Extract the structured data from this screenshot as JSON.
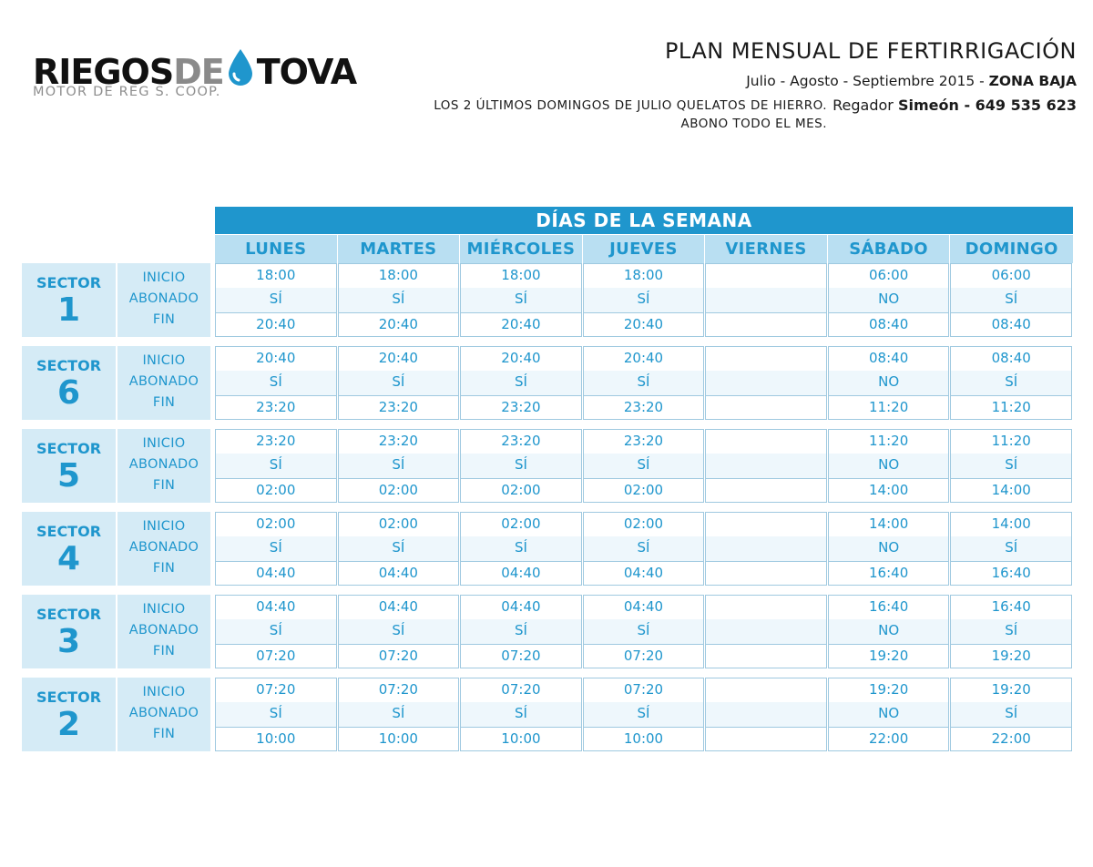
{
  "logo": {
    "part1": "RIEGOS",
    "part2": "DE",
    "part3": "TOVA",
    "subtitle": "MOTOR DE REG S. COOP.",
    "icon": "water-drop-icon",
    "brand_color": "#1f96cd"
  },
  "header": {
    "title": "PLAN MENSUAL DE FERTIRRIGACIÓN",
    "period": "Julio - Agosto - Septiembre 2015 - ",
    "zone": "ZONA BAJA",
    "note_line1": "LOS 2 ÚLTIMOS DOMINGOS DE JULIO QUELATOS DE HIERRO.",
    "note_line2": "ABONO TODO EL MES.",
    "regador_label": "Regador ",
    "regador_contact": "Simeón - 649 535 623"
  },
  "table": {
    "banner": "DÍAS DE LA SEMANA",
    "days": [
      "LUNES",
      "MARTES",
      "MIÉRCOLES",
      "JUEVES",
      "VIERNES",
      "SÁBADO",
      "DOMINGO"
    ],
    "row_labels": [
      "INICIO",
      "ABONADO",
      "FIN"
    ],
    "sector_word": "SECTOR",
    "sectors": [
      {
        "number": "1",
        "inicio": [
          "18:00",
          "18:00",
          "18:00",
          "18:00",
          "",
          "06:00",
          "06:00"
        ],
        "abonado": [
          "SÍ",
          "SÍ",
          "SÍ",
          "SÍ",
          "",
          "NO",
          "SÍ"
        ],
        "fin": [
          "20:40",
          "20:40",
          "20:40",
          "20:40",
          "",
          "08:40",
          "08:40"
        ]
      },
      {
        "number": "6",
        "inicio": [
          "20:40",
          "20:40",
          "20:40",
          "20:40",
          "",
          "08:40",
          "08:40"
        ],
        "abonado": [
          "SÍ",
          "SÍ",
          "SÍ",
          "SÍ",
          "",
          "NO",
          "SÍ"
        ],
        "fin": [
          "23:20",
          "23:20",
          "23:20",
          "23:20",
          "",
          "11:20",
          "11:20"
        ]
      },
      {
        "number": "5",
        "inicio": [
          "23:20",
          "23:20",
          "23:20",
          "23:20",
          "",
          "11:20",
          "11:20"
        ],
        "abonado": [
          "SÍ",
          "SÍ",
          "SÍ",
          "SÍ",
          "",
          "NO",
          "SÍ"
        ],
        "fin": [
          "02:00",
          "02:00",
          "02:00",
          "02:00",
          "",
          "14:00",
          "14:00"
        ]
      },
      {
        "number": "4",
        "inicio": [
          "02:00",
          "02:00",
          "02:00",
          "02:00",
          "",
          "14:00",
          "14:00"
        ],
        "abonado": [
          "SÍ",
          "SÍ",
          "SÍ",
          "SÍ",
          "",
          "NO",
          "SÍ"
        ],
        "fin": [
          "04:40",
          "04:40",
          "04:40",
          "04:40",
          "",
          "16:40",
          "16:40"
        ]
      },
      {
        "number": "3",
        "inicio": [
          "04:40",
          "04:40",
          "04:40",
          "04:40",
          "",
          "16:40",
          "16:40"
        ],
        "abonado": [
          "SÍ",
          "SÍ",
          "SÍ",
          "SÍ",
          "",
          "NO",
          "SÍ"
        ],
        "fin": [
          "07:20",
          "07:20",
          "07:20",
          "07:20",
          "",
          "19:20",
          "19:20"
        ]
      },
      {
        "number": "2",
        "inicio": [
          "07:20",
          "07:20",
          "07:20",
          "07:20",
          "",
          "19:20",
          "19:20"
        ],
        "abonado": [
          "SÍ",
          "SÍ",
          "SÍ",
          "SÍ",
          "",
          "NO",
          "SÍ"
        ],
        "fin": [
          "10:00",
          "10:00",
          "10:00",
          "10:00",
          "",
          "22:00",
          "22:00"
        ]
      }
    ]
  }
}
